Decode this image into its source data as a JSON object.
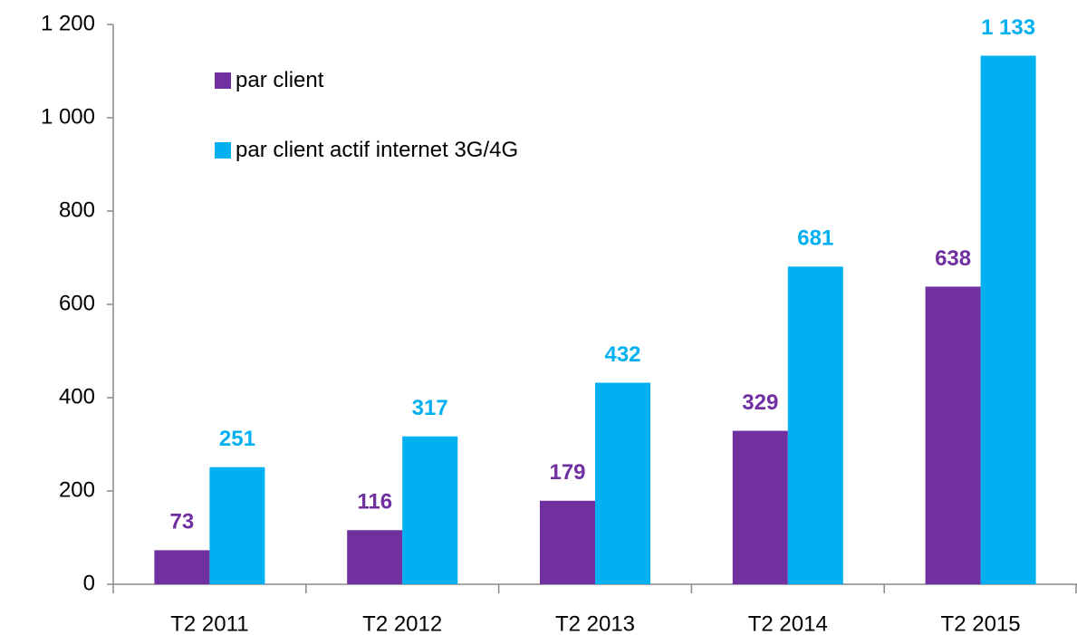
{
  "chart_data": {
    "type": "bar",
    "categories": [
      "T2 2011",
      "T2 2012",
      "T2 2013",
      "T2 2014",
      "T2 2015"
    ],
    "series": [
      {
        "name": "par client",
        "color": "#7030a0",
        "values": [
          73,
          116,
          179,
          329,
          638
        ]
      },
      {
        "name": "par client actif internet 3G/4G",
        "color": "#00b0f0",
        "values": [
          251,
          317,
          432,
          681,
          1133
        ],
        "value_labels": [
          "251",
          "317",
          "432",
          "681",
          "1 133"
        ]
      }
    ],
    "ylim": [
      0,
      1200
    ],
    "yticks": [
      0,
      200,
      400,
      600,
      800,
      {
        "value": 1000,
        "label": "1 000"
      },
      {
        "value": 1200,
        "label": "1 200"
      }
    ],
    "grid": false
  }
}
